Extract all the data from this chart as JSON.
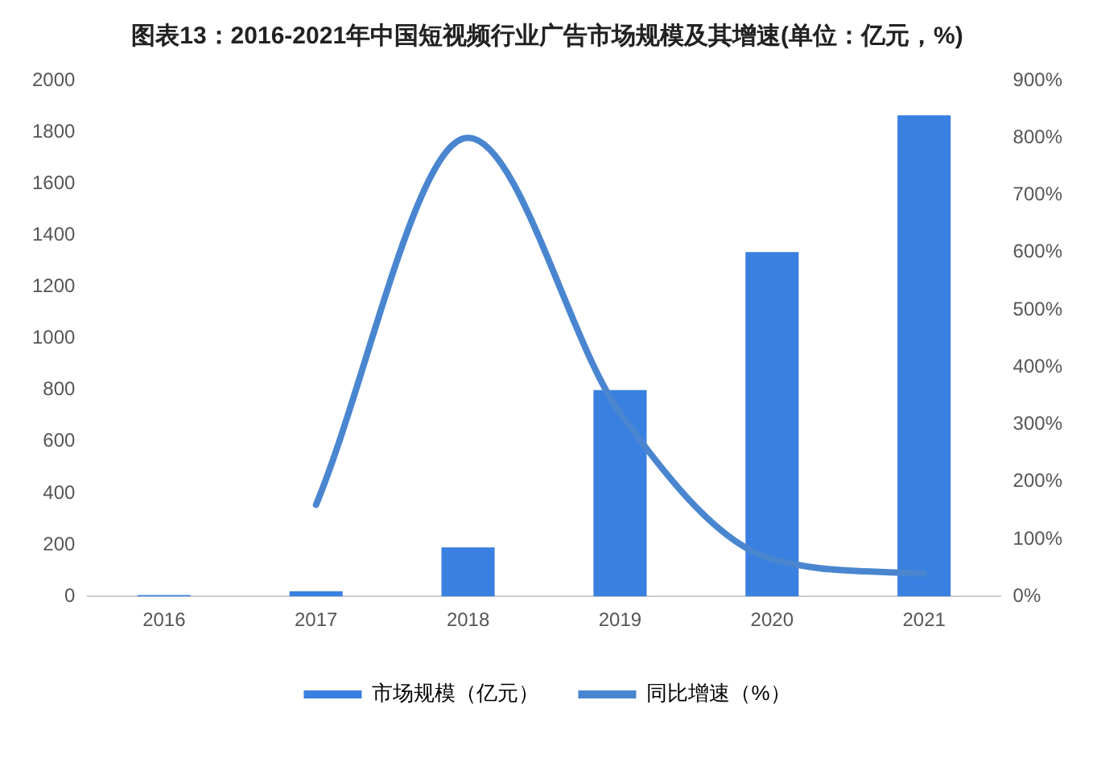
{
  "chart_data": {
    "type": "bar",
    "title": "图表13：2016-2021年中国短视频行业广告市场规模及其增速(单位：亿元，%)",
    "categories": [
      "2016",
      "2017",
      "2018",
      "2019",
      "2020",
      "2021"
    ],
    "series": [
      {
        "name": "市场规模（亿元）",
        "color": "#3a80e0",
        "values": [
          5,
          20,
          190,
          800,
          1335,
          1865
        ]
      },
      {
        "name": "同比增速（%）",
        "type": "line",
        "axis": "y2",
        "color": "#4a86d0",
        "values": [
          null,
          160,
          800,
          320,
          65,
          40
        ]
      }
    ],
    "ylim": [
      0,
      2000
    ],
    "yticks": [
      0,
      200,
      400,
      600,
      800,
      1000,
      1200,
      1400,
      1600,
      1800,
      2000
    ],
    "y2lim": [
      0,
      900
    ],
    "y2ticks": [
      {
        "value": 0,
        "label": "0%"
      },
      {
        "value": 100,
        "label": "100%"
      },
      {
        "value": 200,
        "label": "200%"
      },
      {
        "value": 300,
        "label": "300%"
      },
      {
        "value": 400,
        "label": "400%"
      },
      {
        "value": 500,
        "label": "500%"
      },
      {
        "value": 600,
        "label": "600%"
      },
      {
        "value": 700,
        "label": "700%"
      },
      {
        "value": 800,
        "label": "800%"
      },
      {
        "value": 900,
        "label": "900%"
      }
    ],
    "grid": false,
    "legend": "bottom",
    "marker": "none"
  }
}
